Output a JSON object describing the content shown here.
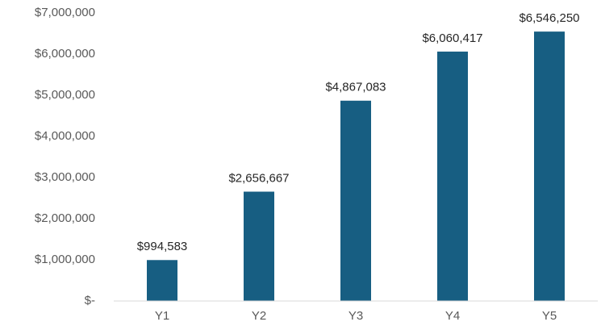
{
  "chart_data": {
    "type": "bar",
    "categories": [
      "Y1",
      "Y2",
      "Y3",
      "Y4",
      "Y5"
    ],
    "values": [
      994583,
      2656667,
      4867083,
      6060417,
      6546250
    ],
    "value_labels": [
      "$994,583",
      "$2,656,667",
      "$4,867,083",
      "$6,060,417",
      "$6,546,250"
    ],
    "color": "#175e82",
    "ylim": [
      0,
      7000000
    ],
    "yticks": [
      {
        "value": 0,
        "label": "$-"
      },
      {
        "value": 1000000,
        "label": "$1,000,000"
      },
      {
        "value": 2000000,
        "label": "$2,000,000"
      },
      {
        "value": 3000000,
        "label": "$3,000,000"
      },
      {
        "value": 4000000,
        "label": "$4,000,000"
      },
      {
        "value": 5000000,
        "label": "$5,000,000"
      },
      {
        "value": 6000000,
        "label": "$6,000,000"
      },
      {
        "value": 7000000,
        "label": "$7,000,000"
      }
    ],
    "grid": false
  }
}
